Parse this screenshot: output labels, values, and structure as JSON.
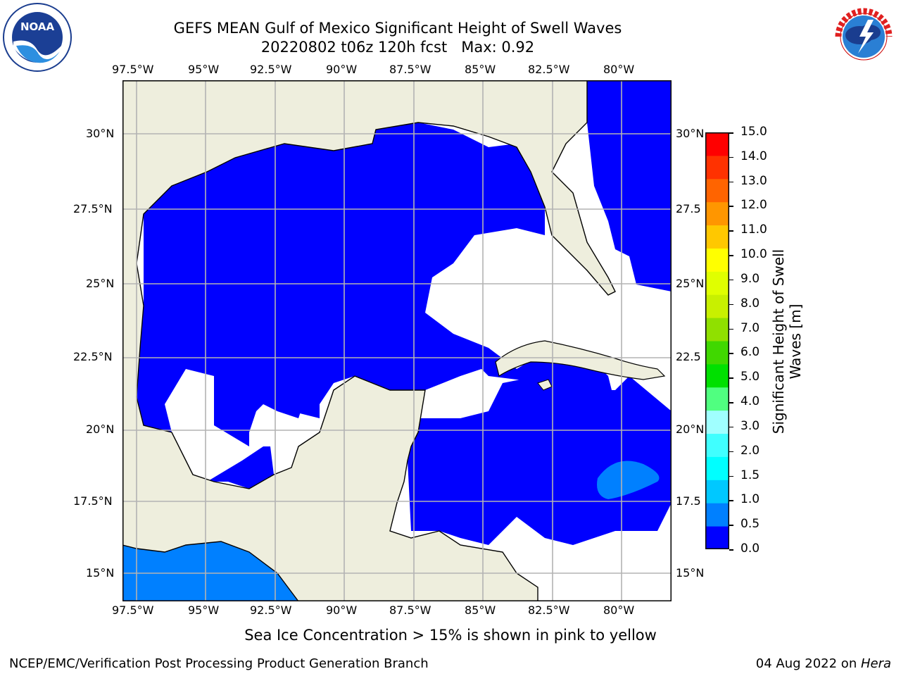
{
  "title": {
    "line1": "GEFS MEAN Gulf of Mexico Significant Height of Swell Waves",
    "line2": "20220802 t06z 120h fcst   Max: 0.92"
  },
  "map": {
    "lon_labels": [
      "97.5°W",
      "95°W",
      "92.5°W",
      "90°W",
      "87.5°W",
      "85°W",
      "82.5°W",
      "80°W"
    ],
    "lat_labels_left": [
      "30°N",
      "27.5°N",
      "25°N",
      "22.5°N",
      "20°N",
      "17.5°N",
      "15°N"
    ],
    "lat_labels_right": [
      "30°N",
      "27.5",
      "25°N",
      "22.5",
      "20°N",
      "17.5",
      "15°N"
    ],
    "colors": {
      "land": "#eeeedd",
      "ocean_low": "#0000ff",
      "ocean_mid": "#0080ff",
      "grid": "#b3b3b3"
    }
  },
  "colorbar": {
    "title": "Significant Height of Swell Waves [m]",
    "title_line1": "Significant Height of Swell",
    "title_line2": "Waves [m]",
    "labels": [
      "0.0",
      "0.5",
      "1.0",
      "1.5",
      "2.0",
      "3.0",
      "4.0",
      "5.0",
      "6.0",
      "7.0",
      "8.0",
      "9.0",
      "10.0",
      "11.0",
      "12.0",
      "13.0",
      "14.0",
      "15.0"
    ],
    "colors": [
      "#0000ff",
      "#0080ff",
      "#00c8ff",
      "#00ffff",
      "#40ffff",
      "#a0ffff",
      "#50ff80",
      "#00e000",
      "#40d800",
      "#90e000",
      "#c8f000",
      "#e0ff00",
      "#ffff00",
      "#ffc800",
      "#ff9600",
      "#ff6400",
      "#ff3200",
      "#ff0000"
    ]
  },
  "note": "Sea Ice Concentration > 15% is shown in pink to yellow",
  "footer": {
    "left": "NCEP/EMC/Verification Post Processing Product Generation Branch",
    "date": "04 Aug 2022 on ",
    "host": "Hera"
  },
  "logos": {
    "noaa_text": "NOAA",
    "noaa_ring": "NATIONAL OCEANIC AND ATMOSPHERIC ADMINISTRATION · U.S. DEPARTMENT OF COMMERCE",
    "nws_ring": "NATIONAL WEATHER SERVICE"
  }
}
